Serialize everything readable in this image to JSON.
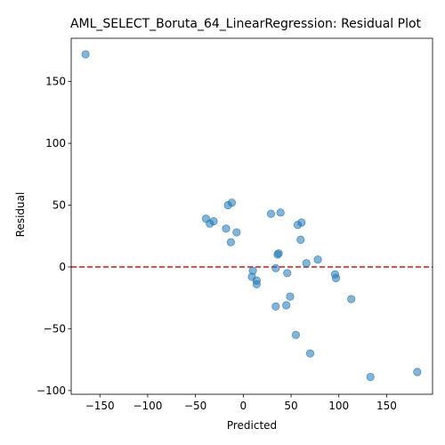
{
  "chart_data": {
    "type": "scatter",
    "title": "AML_SELECT_Boruta_64_LinearRegression: Residual Plot",
    "xlabel": "Predicted",
    "ylabel": "Residual",
    "xlim": [
      -180,
      198
    ],
    "ylim": [
      -103,
      185
    ],
    "xticks": [
      -150,
      -100,
      -50,
      0,
      50,
      100,
      150
    ],
    "yticks": [
      -100,
      -50,
      0,
      50,
      100,
      150
    ],
    "xtick_labels": [
      "−150",
      "−100",
      "−50",
      "0",
      "50",
      "100",
      "150"
    ],
    "ytick_labels": [
      "−100",
      "−50",
      "0",
      "50",
      "100",
      "150"
    ],
    "grid": false,
    "point_color": "#1f77b4",
    "point_alpha": 0.55,
    "reference_line": {
      "y": 0,
      "color": "#d62728",
      "style": "dashed"
    },
    "points": [
      {
        "x": -165,
        "y": 172
      },
      {
        "x": -39,
        "y": 39
      },
      {
        "x": -35,
        "y": 35
      },
      {
        "x": -31,
        "y": 37
      },
      {
        "x": -18,
        "y": 31
      },
      {
        "x": -16,
        "y": 50
      },
      {
        "x": -12,
        "y": 52
      },
      {
        "x": -13,
        "y": 20
      },
      {
        "x": -7,
        "y": 28
      },
      {
        "x": 9,
        "y": -8
      },
      {
        "x": 10,
        "y": -3
      },
      {
        "x": 14,
        "y": -11
      },
      {
        "x": 14,
        "y": -14
      },
      {
        "x": 29,
        "y": 43
      },
      {
        "x": 34,
        "y": -1
      },
      {
        "x": 34,
        "y": -32
      },
      {
        "x": 36,
        "y": 10
      },
      {
        "x": 37,
        "y": 11
      },
      {
        "x": 39,
        "y": 44
      },
      {
        "x": 45,
        "y": -31
      },
      {
        "x": 46,
        "y": -5
      },
      {
        "x": 49,
        "y": -24
      },
      {
        "x": 55,
        "y": -55
      },
      {
        "x": 57,
        "y": 34
      },
      {
        "x": 60,
        "y": 22
      },
      {
        "x": 61,
        "y": 36
      },
      {
        "x": 66,
        "y": 3
      },
      {
        "x": 70,
        "y": -70
      },
      {
        "x": 78,
        "y": 6
      },
      {
        "x": 96,
        "y": -6
      },
      {
        "x": 97,
        "y": -9
      },
      {
        "x": 113,
        "y": -26
      },
      {
        "x": 133,
        "y": -89
      },
      {
        "x": 182,
        "y": -85
      }
    ]
  }
}
